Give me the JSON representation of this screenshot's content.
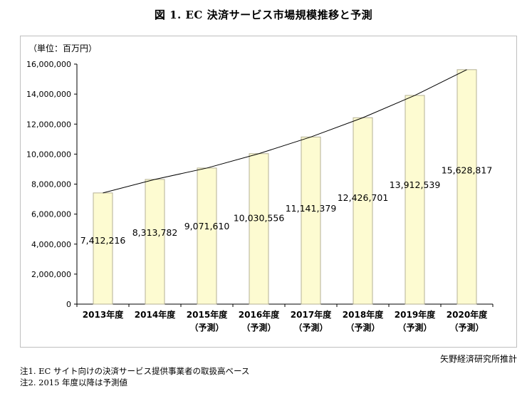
{
  "title": "図 1. EC 決済サービス市場規模推移と予測",
  "chart_data": {
    "type": "bar",
    "unit_label": "（単位：百万円）",
    "categories": [
      [
        "2013年度"
      ],
      [
        "2014年度"
      ],
      [
        "2015年度",
        "（予測）"
      ],
      [
        "2016年度",
        "（予測）"
      ],
      [
        "2017年度",
        "（予測）"
      ],
      [
        "2018年度",
        "（予測）"
      ],
      [
        "2019年度",
        "（予測）"
      ],
      [
        "2020年度",
        "（予測）"
      ]
    ],
    "values": [
      7412216,
      8313782,
      9071610,
      10030556,
      11141379,
      12426701,
      13912539,
      15628817
    ],
    "data_labels": [
      "7,412,216",
      "8,313,782",
      "9,071,610",
      "10,030,556",
      "11,141,379",
      "12,426,701",
      "13,912,539",
      "15,628,817"
    ],
    "trend_line": true,
    "ylim": [
      0,
      16000000
    ],
    "yticks": [
      "0",
      "2,000,000",
      "4,000,000",
      "6,000,000",
      "8,000,000",
      "10,000,000",
      "12,000,000",
      "14,000,000",
      "16,000,000"
    ],
    "bar_color": "#fdfbd1",
    "bar_border_color": "#b5b196",
    "line_color": "#000000",
    "grid": false
  },
  "source": "矢野経済研究所推計",
  "notes": [
    "注1. EC サイト向けの決済サービス提供事業者の取扱高ベース",
    "注2. 2015 年度以降は予測値"
  ]
}
